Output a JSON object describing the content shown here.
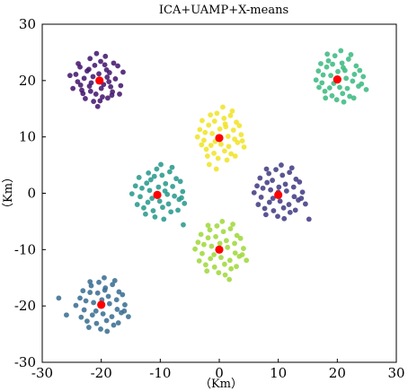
{
  "chart_data": {
    "type": "scatter",
    "title": "ICA+UAMP+X-means",
    "xlabel": "（Km）",
    "ylabel": "（Km）",
    "xlim": [
      -30,
      30
    ],
    "ylim": [
      -30,
      30
    ],
    "x_ticks": [
      "-30",
      "-20",
      "-10",
      "0",
      "10",
      "20",
      "30"
    ],
    "y_ticks": [
      "30",
      "20",
      "10",
      "0",
      "-10",
      "-20",
      "-30"
    ],
    "grid": false,
    "legend": "none",
    "centroid_color": "#ff0000",
    "clusters": [
      {
        "center": [
          -20.3,
          20.0
        ],
        "color": "#46186f",
        "points": [
          [
            -22.1,
            22.0
          ],
          [
            -18.4,
            18.9
          ],
          [
            -20.9,
            17.6
          ],
          [
            -23.5,
            19.2
          ],
          [
            -19.1,
            21.9
          ],
          [
            -21.4,
            20.7
          ],
          [
            -17.6,
            20.3
          ],
          [
            -20.1,
            23.4
          ],
          [
            -24.3,
            21.1
          ],
          [
            -18.9,
            16.9
          ],
          [
            -21.8,
            18.1
          ],
          [
            -19.6,
            19.3
          ],
          [
            -22.7,
            16.8
          ],
          [
            -17.2,
            22.6
          ],
          [
            -20.4,
            21.2
          ],
          [
            -23.9,
            23.0
          ],
          [
            -18.1,
            18.0
          ],
          [
            -21.1,
            22.7
          ],
          [
            -19.8,
            17.1
          ],
          [
            -22.9,
            20.4
          ],
          [
            -16.7,
            19.1
          ],
          [
            -20.6,
            15.4
          ],
          [
            -24.8,
            18.6
          ],
          [
            -19.3,
            24.3
          ],
          [
            -21.7,
            19.6
          ],
          [
            -18.6,
            21.4
          ],
          [
            -23.1,
            17.7
          ],
          [
            -20.0,
            18.6
          ],
          [
            -17.9,
            23.1
          ],
          [
            -22.4,
            21.7
          ],
          [
            -25.3,
            20.9
          ],
          [
            -19.0,
            20.6
          ],
          [
            -16.3,
            21.5
          ],
          [
            -21.3,
            16.3
          ],
          [
            -23.6,
            22.4
          ],
          [
            -20.8,
            24.8
          ],
          [
            -18.2,
            17.4
          ],
          [
            -22.0,
            19.0
          ],
          [
            -19.4,
            22.8
          ],
          [
            -24.0,
            19.8
          ],
          [
            -16.9,
            17.6
          ],
          [
            -21.9,
            23.9
          ],
          [
            -18.7,
            19.8
          ],
          [
            -23.3,
            18.3
          ],
          [
            -20.2,
            16.4
          ]
        ]
      },
      {
        "center": [
          20.0,
          20.2
        ],
        "color": "#3dbb82",
        "points": [
          [
            18.2,
            22.4
          ],
          [
            21.7,
            18.6
          ],
          [
            19.1,
            17.3
          ],
          [
            22.9,
            21.1
          ],
          [
            17.4,
            19.6
          ],
          [
            20.8,
            23.1
          ],
          [
            23.6,
            19.0
          ],
          [
            18.9,
            20.9
          ],
          [
            21.3,
            21.8
          ],
          [
            16.8,
            21.7
          ],
          [
            22.1,
            17.2
          ],
          [
            19.6,
            24.4
          ],
          [
            24.4,
            20.7
          ],
          [
            17.9,
            18.1
          ],
          [
            20.4,
            18.8
          ],
          [
            21.9,
            23.8
          ],
          [
            18.5,
            23.5
          ],
          [
            23.2,
            22.6
          ],
          [
            19.9,
            16.6
          ],
          [
            16.4,
            20.1
          ],
          [
            22.6,
            19.9
          ],
          [
            20.1,
            21.6
          ],
          [
            18.0,
            16.9
          ],
          [
            24.9,
            18.4
          ],
          [
            17.2,
            23.0
          ],
          [
            21.1,
            16.2
          ],
          [
            19.4,
            19.5
          ],
          [
            23.8,
            21.8
          ],
          [
            20.6,
            25.3
          ],
          [
            18.7,
            18.7
          ],
          [
            22.3,
            24.6
          ],
          [
            16.9,
            18.8
          ],
          [
            21.5,
            20.4
          ],
          [
            19.2,
            22.9
          ],
          [
            24.1,
            19.4
          ],
          [
            17.6,
            21.0
          ],
          [
            20.9,
            17.7
          ],
          [
            22.8,
            16.9
          ],
          [
            18.3,
            24.7
          ],
          [
            21.0,
            22.3
          ]
        ]
      },
      {
        "center": [
          0.0,
          9.8
        ],
        "color": "#f0e429",
        "points": [
          [
            -1.8,
            12.1
          ],
          [
            1.6,
            8.3
          ],
          [
            -0.9,
            7.1
          ],
          [
            2.4,
            11.2
          ],
          [
            -2.6,
            9.4
          ],
          [
            0.8,
            13.3
          ],
          [
            3.1,
            9.0
          ],
          [
            -1.2,
            10.6
          ],
          [
            1.1,
            11.8
          ],
          [
            -3.3,
            11.3
          ],
          [
            2.0,
            7.0
          ],
          [
            -0.4,
            14.2
          ],
          [
            3.7,
            10.4
          ],
          [
            -2.2,
            7.8
          ],
          [
            0.3,
            8.7
          ],
          [
            1.9,
            13.8
          ],
          [
            -1.5,
            13.9
          ],
          [
            2.9,
            12.6
          ],
          [
            -0.2,
            6.2
          ],
          [
            -3.7,
            10.0
          ],
          [
            2.6,
            9.6
          ],
          [
            0.1,
            11.4
          ],
          [
            -2.0,
            6.6
          ],
          [
            4.2,
            8.2
          ],
          [
            -2.9,
            12.9
          ],
          [
            1.3,
            5.9
          ],
          [
            -0.7,
            9.2
          ],
          [
            3.4,
            12.0
          ],
          [
            0.6,
            15.3
          ],
          [
            -1.4,
            8.5
          ],
          [
            2.2,
            14.6
          ],
          [
            -3.0,
            8.6
          ],
          [
            1.5,
            10.1
          ],
          [
            -0.8,
            12.8
          ],
          [
            3.9,
            9.3
          ],
          [
            -2.4,
            10.8
          ],
          [
            0.9,
            7.5
          ],
          [
            2.7,
            6.6
          ],
          [
            -1.7,
            5.1
          ],
          [
            -0.5,
            4.3
          ],
          [
            1.0,
            12.3
          ]
        ]
      },
      {
        "center": [
          -10.5,
          -0.3
        ],
        "color": "#2a9a8d",
        "points": [
          [
            -12.3,
            1.8
          ],
          [
            -8.6,
            -1.9
          ],
          [
            -11.2,
            -3.1
          ],
          [
            -7.9,
            1.2
          ],
          [
            -13.4,
            -0.6
          ],
          [
            -9.7,
            3.2
          ],
          [
            -6.8,
            -1.1
          ],
          [
            -11.8,
            0.5
          ],
          [
            -9.1,
            1.7
          ],
          [
            -14.2,
            1.3
          ],
          [
            -8.2,
            -3.3
          ],
          [
            -10.6,
            4.3
          ],
          [
            -6.2,
            0.3
          ],
          [
            -12.8,
            -2.6
          ],
          [
            -10.1,
            -1.4
          ],
          [
            -8.4,
            3.8
          ],
          [
            -12.0,
            3.6
          ],
          [
            -7.3,
            2.6
          ],
          [
            -10.9,
            -4.2
          ],
          [
            -14.8,
            -0.1
          ],
          [
            -7.6,
            -0.5
          ],
          [
            -10.3,
            1.1
          ],
          [
            -12.5,
            -3.7
          ],
          [
            -5.9,
            -1.8
          ],
          [
            -13.6,
            2.8
          ],
          [
            -9.4,
            -4.6
          ],
          [
            -11.4,
            -0.9
          ],
          [
            -6.6,
            2.1
          ],
          [
            -9.9,
            5.1
          ],
          [
            -12.1,
            -1.6
          ],
          [
            -8.0,
            4.6
          ],
          [
            -13.9,
            -2.0
          ],
          [
            -9.2,
            0.4
          ],
          [
            -11.6,
            2.4
          ],
          [
            -6.4,
            -0.8
          ],
          [
            -13.1,
            0.9
          ],
          [
            -9.6,
            -2.5
          ],
          [
            -7.0,
            -3.0
          ],
          [
            -11.0,
            3.0
          ],
          [
            -8.8,
            -0.2
          ],
          [
            -6.1,
            -5.6
          ]
        ]
      },
      {
        "center": [
          10.0,
          -0.3
        ],
        "color": "#433d84",
        "points": [
          [
            8.1,
            1.9
          ],
          [
            11.8,
            -2.0
          ],
          [
            9.2,
            -3.1
          ],
          [
            12.6,
            1.1
          ],
          [
            7.1,
            -0.7
          ],
          [
            10.7,
            3.2
          ],
          [
            13.4,
            -1.2
          ],
          [
            8.7,
            0.6
          ],
          [
            11.2,
            1.6
          ],
          [
            6.4,
            1.3
          ],
          [
            12.0,
            -3.4
          ],
          [
            9.6,
            4.2
          ],
          [
            14.1,
            0.2
          ],
          [
            7.7,
            -2.7
          ],
          [
            10.3,
            -1.4
          ],
          [
            11.9,
            3.7
          ],
          [
            8.4,
            3.5
          ],
          [
            13.0,
            2.5
          ],
          [
            9.9,
            -4.1
          ],
          [
            5.9,
            0.1
          ],
          [
            12.7,
            -0.6
          ],
          [
            10.1,
            1.1
          ],
          [
            7.9,
            -3.8
          ],
          [
            14.6,
            -1.9
          ],
          [
            6.9,
            2.7
          ],
          [
            11.0,
            -4.5
          ],
          [
            9.1,
            -0.9
          ],
          [
            13.6,
            2.0
          ],
          [
            10.5,
            5.0
          ],
          [
            8.5,
            -1.6
          ],
          [
            12.3,
            4.5
          ],
          [
            6.6,
            -2.0
          ],
          [
            11.4,
            0.4
          ],
          [
            9.0,
            2.3
          ],
          [
            13.9,
            -0.9
          ],
          [
            7.4,
            0.9
          ],
          [
            10.9,
            -2.6
          ],
          [
            12.9,
            -3.0
          ],
          [
            8.0,
            4.3
          ],
          [
            10.0,
            0.2
          ],
          [
            15.2,
            -4.6
          ]
        ]
      },
      {
        "center": [
          0.0,
          -10.0
        ],
        "color": "#a0d83e",
        "points": [
          [
            -1.9,
            -7.9
          ],
          [
            1.8,
            -11.9
          ],
          [
            -0.8,
            -13.1
          ],
          [
            2.6,
            -8.9
          ],
          [
            -2.9,
            -10.7
          ],
          [
            0.7,
            -6.8
          ],
          [
            3.4,
            -11.2
          ],
          [
            -1.3,
            -9.4
          ],
          [
            1.2,
            -8.4
          ],
          [
            -3.6,
            -8.7
          ],
          [
            2.0,
            -13.4
          ],
          [
            -0.4,
            -5.8
          ],
          [
            4.1,
            -9.8
          ],
          [
            -2.3,
            -12.7
          ],
          [
            0.3,
            -11.4
          ],
          [
            1.9,
            -6.3
          ],
          [
            -1.6,
            -6.5
          ],
          [
            3.0,
            -7.5
          ],
          [
            -0.1,
            -14.1
          ],
          [
            -4.1,
            -9.9
          ],
          [
            2.7,
            -10.6
          ],
          [
            0.1,
            -8.9
          ],
          [
            -2.1,
            -13.8
          ],
          [
            4.6,
            -11.9
          ],
          [
            -3.1,
            -7.3
          ],
          [
            1.0,
            -14.5
          ],
          [
            -0.9,
            -10.9
          ],
          [
            3.6,
            -8.0
          ],
          [
            0.5,
            -5.0
          ],
          [
            -1.5,
            -11.6
          ],
          [
            2.3,
            -5.5
          ],
          [
            -3.4,
            -12.0
          ],
          [
            1.4,
            -9.6
          ],
          [
            -0.6,
            -7.7
          ],
          [
            3.9,
            -10.9
          ],
          [
            -2.6,
            -9.1
          ],
          [
            0.9,
            -12.6
          ],
          [
            2.9,
            -13.0
          ],
          [
            -1.9,
            -5.7
          ],
          [
            0.0,
            -9.8
          ],
          [
            1.7,
            -15.3
          ]
        ]
      },
      {
        "center": [
          -20.0,
          -19.8
        ],
        "color": "#3b6f93",
        "points": [
          [
            -21.9,
            -17.6
          ],
          [
            -18.2,
            -21.9
          ],
          [
            -20.8,
            -23.1
          ],
          [
            -17.4,
            -18.9
          ],
          [
            -22.9,
            -20.7
          ],
          [
            -19.3,
            -16.8
          ],
          [
            -16.6,
            -21.2
          ],
          [
            -21.3,
            -19.4
          ],
          [
            -18.8,
            -18.3
          ],
          [
            -23.6,
            -18.6
          ],
          [
            -17.9,
            -23.4
          ],
          [
            -20.4,
            -15.8
          ],
          [
            -16.0,
            -19.8
          ],
          [
            -22.4,
            -22.7
          ],
          [
            -19.7,
            -21.4
          ],
          [
            -18.1,
            -16.2
          ],
          [
            -21.7,
            -16.4
          ],
          [
            -17.0,
            -17.5
          ],
          [
            -20.1,
            -24.1
          ],
          [
            -24.3,
            -19.9
          ],
          [
            -17.3,
            -20.6
          ],
          [
            -19.9,
            -18.9
          ],
          [
            -22.1,
            -23.8
          ],
          [
            -15.4,
            -21.9
          ],
          [
            -23.1,
            -17.3
          ],
          [
            -19.0,
            -24.5
          ],
          [
            -20.9,
            -20.9
          ],
          [
            -16.4,
            -18.0
          ],
          [
            -19.5,
            -15.0
          ],
          [
            -21.5,
            -21.6
          ],
          [
            -17.7,
            -15.5
          ],
          [
            -23.4,
            -22.0
          ],
          [
            -18.6,
            -19.6
          ],
          [
            -20.6,
            -17.7
          ],
          [
            -16.1,
            -20.9
          ],
          [
            -22.6,
            -19.1
          ],
          [
            -19.1,
            -22.6
          ],
          [
            -17.1,
            -23.0
          ],
          [
            -21.9,
            -15.7
          ],
          [
            -19.4,
            -17.2
          ],
          [
            -27.2,
            -18.6
          ],
          [
            -25.9,
            -21.6
          ]
        ]
      }
    ]
  }
}
